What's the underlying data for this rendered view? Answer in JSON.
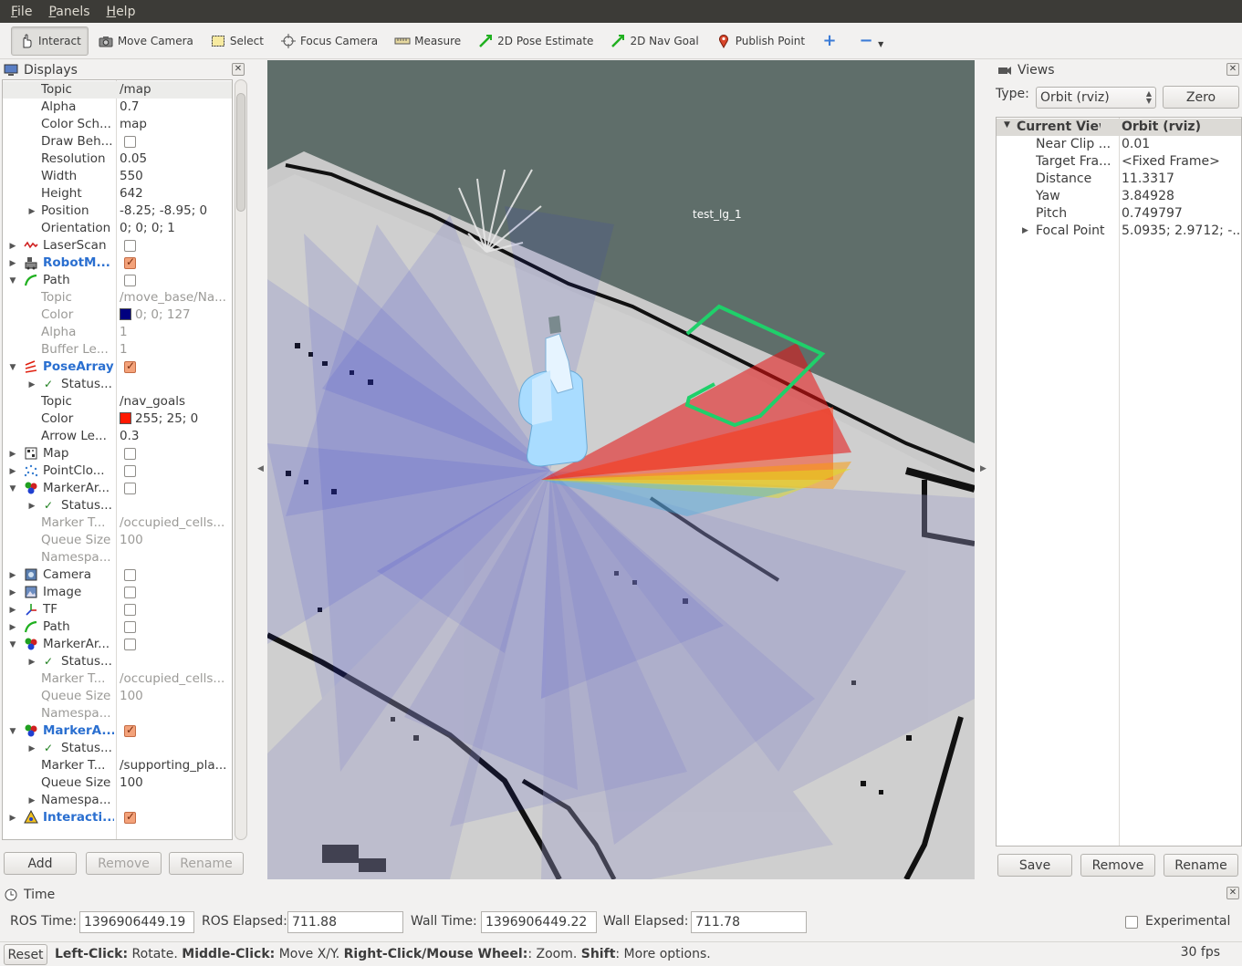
{
  "menu": [
    "File",
    "Panels",
    "Help"
  ],
  "toolbar": {
    "interact": "Interact",
    "move_camera": "Move Camera",
    "select": "Select",
    "focus_camera": "Focus Camera",
    "measure": "Measure",
    "pose_estimate": "2D Pose Estimate",
    "nav_goal": "2D Nav Goal",
    "publish_point": "Publish Point"
  },
  "displays": {
    "title": "Displays",
    "rows": [
      {
        "label": "Topic",
        "value": "/map"
      },
      {
        "label": "Alpha",
        "value": "0.7"
      },
      {
        "label": "Color Sch...",
        "value": "map"
      },
      {
        "label": "Draw Beh...",
        "value": ""
      },
      {
        "label": "Resolution",
        "value": "0.05"
      },
      {
        "label": "Width",
        "value": "550"
      },
      {
        "label": "Height",
        "value": "642"
      },
      {
        "label": "Position",
        "value": "-8.25; -8.95; 0"
      },
      {
        "label": "Orientation",
        "value": "0; 0; 0; 1"
      },
      {
        "label": "LaserScan",
        "value": ""
      },
      {
        "label": "RobotM...",
        "value": ""
      },
      {
        "label": "Path",
        "value": ""
      },
      {
        "label": "Topic",
        "value": "/move_base/Na..."
      },
      {
        "label": "Color",
        "value": "0; 0; 127"
      },
      {
        "label": "Alpha",
        "value": "1"
      },
      {
        "label": "Buffer Le...",
        "value": "1"
      },
      {
        "label": "PoseArray",
        "value": ""
      },
      {
        "label": "Status...",
        "value": ""
      },
      {
        "label": "Topic",
        "value": "/nav_goals"
      },
      {
        "label": "Color",
        "value": "255; 25; 0"
      },
      {
        "label": "Arrow Le...",
        "value": "0.3"
      },
      {
        "label": "Map",
        "value": ""
      },
      {
        "label": "PointClo...",
        "value": ""
      },
      {
        "label": "MarkerAr...",
        "value": ""
      },
      {
        "label": "Status...",
        "value": ""
      },
      {
        "label": "Marker T...",
        "value": "/occupied_cells..."
      },
      {
        "label": "Queue Size",
        "value": "100"
      },
      {
        "label": "Namespa...",
        "value": ""
      },
      {
        "label": "Camera",
        "value": ""
      },
      {
        "label": "Image",
        "value": ""
      },
      {
        "label": "TF",
        "value": ""
      },
      {
        "label": "Path",
        "value": ""
      },
      {
        "label": "MarkerAr...",
        "value": ""
      },
      {
        "label": "Status...",
        "value": ""
      },
      {
        "label": "Marker T...",
        "value": "/occupied_cells..."
      },
      {
        "label": "Queue Size",
        "value": "100"
      },
      {
        "label": "Namespa...",
        "value": ""
      },
      {
        "label": "MarkerA...",
        "value": ""
      },
      {
        "label": "Status...",
        "value": ""
      },
      {
        "label": "Marker T...",
        "value": "/supporting_pla..."
      },
      {
        "label": "Queue Size",
        "value": "100"
      },
      {
        "label": "Namespa...",
        "value": ""
      },
      {
        "label": "Interacti...",
        "value": ""
      }
    ],
    "buttons": {
      "add": "Add",
      "remove": "Remove",
      "rename": "Rename"
    }
  },
  "view3d": {
    "frame_label": "test_lg_1"
  },
  "views": {
    "title": "Views",
    "type_label": "Type:",
    "type_value": "Orbit (rviz)",
    "zero": "Zero",
    "header": {
      "label": "Current View",
      "value": "Orbit (rviz)"
    },
    "rows": [
      {
        "label": "Near Clip ...",
        "value": "0.01"
      },
      {
        "label": "Target Fra...",
        "value": "<Fixed Frame>"
      },
      {
        "label": "Distance",
        "value": "11.3317"
      },
      {
        "label": "Yaw",
        "value": "3.84928"
      },
      {
        "label": "Pitch",
        "value": "0.749797"
      },
      {
        "label": "Focal Point",
        "value": "5.0935; 2.9712; -..."
      }
    ],
    "buttons": {
      "save": "Save",
      "remove": "Remove",
      "rename": "Rename"
    }
  },
  "time": {
    "title": "Time",
    "ros_time_label": "ROS Time:",
    "ros_time": "1396906449.19",
    "ros_elapsed_label": "ROS Elapsed:",
    "ros_elapsed": "711.88",
    "wall_time_label": "Wall Time:",
    "wall_time": "1396906449.22",
    "wall_elapsed_label": "Wall Elapsed:",
    "wall_elapsed": "711.78",
    "experimental": "Experimental"
  },
  "status": {
    "reset": "Reset",
    "help_b1": "Left-Click:",
    "help_t1": " Rotate. ",
    "help_b2": "Middle-Click:",
    "help_t2": " Move X/Y. ",
    "help_b3": "Right-Click/Mouse Wheel:",
    "help_t3": ": Zoom. ",
    "help_b4": "Shift",
    "help_t4": ": More options.",
    "fps": "30 fps"
  },
  "colors": {
    "path_color": "#00007f",
    "posearray_color": "#ff1900",
    "accent": "#2a6fd0"
  }
}
